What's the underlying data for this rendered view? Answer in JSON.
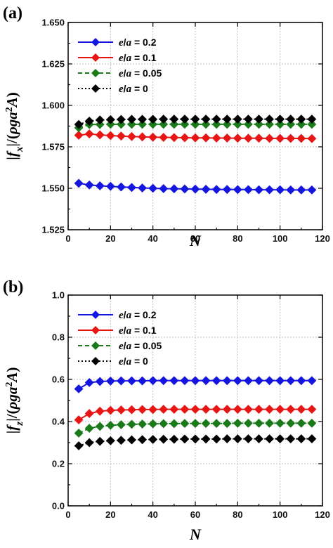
{
  "chart_data": [
    {
      "type": "line",
      "panel_label": "(a)",
      "xlabel": "N",
      "ylabel": "|f_x|/(ρga²A)",
      "xlim": [
        0,
        120
      ],
      "ylim": [
        1.525,
        1.65
      ],
      "xticks": [
        "0",
        "20",
        "40",
        "60",
        "80",
        "100",
        "120"
      ],
      "yticks": [
        "1.525",
        "1.550",
        "1.575",
        "1.600",
        "1.625",
        "1.650"
      ],
      "grid": true,
      "legend_position": "top-left",
      "x": [
        5,
        10,
        15,
        20,
        25,
        30,
        35,
        40,
        45,
        50,
        55,
        60,
        65,
        70,
        75,
        80,
        85,
        90,
        95,
        100,
        105,
        110,
        115
      ],
      "series": [
        {
          "name": "e/a = 0.2",
          "name_parts": [
            "e",
            "/",
            "a",
            " = 0.2"
          ],
          "color": "#1515e0",
          "line": "solid",
          "values": [
            1.553,
            1.552,
            1.5515,
            1.5512,
            1.5508,
            1.5505,
            1.5502,
            1.55,
            1.5498,
            1.5497,
            1.5496,
            1.5495,
            1.5494,
            1.5493,
            1.5493,
            1.5492,
            1.5492,
            1.5491,
            1.5491,
            1.5491,
            1.549,
            1.549,
            1.549
          ]
        },
        {
          "name": "e/a = 0.1",
          "name_parts": [
            "e",
            "/",
            "a",
            " = 0.1"
          ],
          "color": "#e81515",
          "line": "solid",
          "values": [
            1.582,
            1.5828,
            1.5822,
            1.5818,
            1.5815,
            1.5812,
            1.581,
            1.5808,
            1.5807,
            1.5806,
            1.5805,
            1.5804,
            1.5804,
            1.5803,
            1.5803,
            1.5802,
            1.5802,
            1.5802,
            1.5801,
            1.5801,
            1.5801,
            1.5801,
            1.58
          ]
        },
        {
          "name": "e/a = 0.05",
          "name_parts": [
            "e",
            "/",
            "a",
            " = 0.05"
          ],
          "color": "#1a7a1a",
          "line": "dashed",
          "values": [
            1.5865,
            1.5885,
            1.5885,
            1.5886,
            1.5886,
            1.5886,
            1.5886,
            1.5886,
            1.5886,
            1.5886,
            1.5886,
            1.5886,
            1.5886,
            1.5886,
            1.5886,
            1.5886,
            1.5886,
            1.5886,
            1.5886,
            1.5886,
            1.5886,
            1.5886,
            1.5886
          ]
        },
        {
          "name": "e/a = 0",
          "name_parts": [
            "e",
            "/",
            "a",
            " = 0"
          ],
          "color": "#000000",
          "line": "dotted",
          "values": [
            1.5885,
            1.5905,
            1.5912,
            1.5914,
            1.5915,
            1.5916,
            1.5916,
            1.5916,
            1.5917,
            1.5917,
            1.5917,
            1.5917,
            1.5917,
            1.5917,
            1.5917,
            1.5917,
            1.5917,
            1.5917,
            1.5917,
            1.5917,
            1.5917,
            1.5917,
            1.5917
          ]
        }
      ]
    },
    {
      "type": "line",
      "panel_label": "(b)",
      "xlabel": "N",
      "ylabel": "|f_z|/(ρga²A)",
      "xlim": [
        0,
        120
      ],
      "ylim": [
        0.0,
        1.0
      ],
      "xticks": [
        "0",
        "20",
        "40",
        "60",
        "80",
        "100",
        "120"
      ],
      "yticks": [
        "0.0",
        "0.2",
        "0.4",
        "0.6",
        "0.8",
        "1.0"
      ],
      "grid": true,
      "legend_position": "top-left",
      "x": [
        5,
        10,
        15,
        20,
        25,
        30,
        35,
        40,
        45,
        50,
        55,
        60,
        65,
        70,
        75,
        80,
        85,
        90,
        95,
        100,
        105,
        110,
        115
      ],
      "series": [
        {
          "name": "e/a = 0.2",
          "name_parts": [
            "e",
            "/",
            "a",
            " = 0.2"
          ],
          "color": "#1515e0",
          "line": "solid",
          "values": [
            0.555,
            0.585,
            0.59,
            0.592,
            0.593,
            0.593,
            0.593,
            0.594,
            0.594,
            0.594,
            0.594,
            0.594,
            0.594,
            0.594,
            0.594,
            0.594,
            0.594,
            0.594,
            0.594,
            0.594,
            0.594,
            0.594,
            0.594
          ]
        },
        {
          "name": "e/a = 0.1",
          "name_parts": [
            "e",
            "/",
            "a",
            " = 0.1"
          ],
          "color": "#e81515",
          "line": "solid",
          "values": [
            0.408,
            0.438,
            0.449,
            0.453,
            0.455,
            0.456,
            0.457,
            0.457,
            0.458,
            0.458,
            0.458,
            0.458,
            0.458,
            0.458,
            0.458,
            0.458,
            0.458,
            0.458,
            0.458,
            0.458,
            0.458,
            0.458,
            0.458
          ]
        },
        {
          "name": "e/a = 0.05",
          "name_parts": [
            "e",
            "/",
            "a",
            " = 0.05"
          ],
          "color": "#1a7a1a",
          "line": "dashed",
          "values": [
            0.345,
            0.368,
            0.377,
            0.382,
            0.385,
            0.387,
            0.388,
            0.389,
            0.39,
            0.39,
            0.391,
            0.391,
            0.391,
            0.391,
            0.391,
            0.392,
            0.392,
            0.392,
            0.392,
            0.392,
            0.392,
            0.392,
            0.392
          ]
        },
        {
          "name": "e/a = 0",
          "name_parts": [
            "e",
            "/",
            "a",
            " = 0"
          ],
          "color": "#000000",
          "line": "dotted",
          "values": [
            0.285,
            0.3,
            0.306,
            0.309,
            0.311,
            0.313,
            0.314,
            0.315,
            0.316,
            0.316,
            0.317,
            0.317,
            0.317,
            0.317,
            0.318,
            0.318,
            0.318,
            0.318,
            0.318,
            0.318,
            0.318,
            0.318,
            0.318
          ]
        }
      ]
    }
  ]
}
